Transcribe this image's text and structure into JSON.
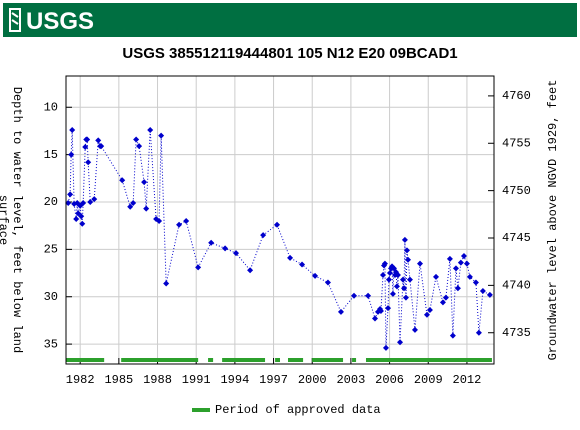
{
  "header": {
    "logo": "USGS"
  },
  "chart_data": {
    "type": "scatter",
    "title": "USGS 385512119444801 105  N12 E20 09BCAD1",
    "y_label": "Depth to water level, feet below land surface",
    "y2_label": "Groundwater level above NGVD 1929, feet",
    "xlim": [
      1980.9,
      2014.1
    ],
    "xticks": [
      1982,
      1985,
      1988,
      1991,
      1994,
      1997,
      2000,
      2003,
      2006,
      2009,
      2012
    ],
    "ylim": [
      6.7,
      37.1
    ],
    "y_inverted": true,
    "yticks": [
      10,
      15,
      20,
      25,
      30,
      35
    ],
    "y2lim": [
      4731.7,
      4762.1
    ],
    "y2ticks": [
      4735,
      4740,
      4745,
      4750,
      4755,
      4760
    ],
    "grid": true,
    "x": [
      1981.07,
      1981.22,
      1981.3,
      1981.38,
      1981.53,
      1981.69,
      1981.77,
      1981.84,
      1982.0,
      1982.08,
      1982.16,
      1982.23,
      1982.39,
      1982.47,
      1982.54,
      1982.62,
      1982.78,
      1983.09,
      1983.4,
      1983.55,
      1983.63,
      1985.26,
      1985.88,
      1986.11,
      1986.34,
      1986.57,
      1986.96,
      1987.12,
      1987.43,
      1987.89,
      1988.12,
      1988.28,
      1988.67,
      1989.67,
      1990.22,
      1991.15,
      1992.16,
      1993.24,
      1994.09,
      1995.18,
      1996.19,
      1997.27,
      1998.28,
      1999.21,
      2000.22,
      2001.22,
      2002.23,
      2003.24,
      2004.33,
      2004.87,
      2005.1,
      2005.26,
      2005.33,
      2005.49,
      2005.57,
      2005.64,
      2005.72,
      2005.88,
      2005.95,
      2006.03,
      2006.11,
      2006.19,
      2006.26,
      2006.34,
      2006.42,
      2006.5,
      2006.57,
      2006.65,
      2006.81,
      2007.04,
      2007.12,
      2007.19,
      2007.27,
      2007.35,
      2007.43,
      2007.58,
      2007.97,
      2008.36,
      2008.9,
      2009.13,
      2009.6,
      2010.14,
      2010.37,
      2010.68,
      2010.91,
      2011.15,
      2011.3,
      2011.53,
      2011.77,
      2012.0,
      2012.23,
      2012.7,
      2012.93,
      2013.24,
      2013.78
    ],
    "series": [
      {
        "color": "#0000cc",
        "values": [
          20.1,
          19.2,
          15.0,
          12.4,
          20.2,
          21.8,
          20.1,
          21.2,
          20.4,
          21.5,
          22.3,
          20.1,
          14.2,
          13.4,
          13.4,
          15.8,
          20.0,
          19.7,
          13.5,
          14.1,
          14.1,
          17.7,
          20.5,
          20.1,
          13.4,
          14.1,
          17.9,
          20.7,
          12.4,
          21.8,
          22.0,
          13.0,
          28.6,
          22.4,
          22.0,
          26.9,
          24.3,
          24.9,
          25.4,
          27.2,
          23.5,
          22.4,
          25.9,
          26.6,
          27.8,
          28.5,
          31.6,
          29.9,
          29.9,
          32.3,
          31.6,
          31.3,
          31.5,
          27.7,
          26.7,
          26.5,
          35.4,
          31.2,
          28.2,
          27.5,
          27.0,
          26.8,
          29.7,
          27.0,
          27.7,
          27.4,
          28.9,
          27.7,
          34.8,
          28.2,
          29.1,
          24.0,
          30.1,
          25.1,
          26.1,
          28.2,
          33.5,
          26.5,
          31.9,
          31.4,
          27.9,
          30.6,
          30.1,
          26.0,
          34.1,
          27.0,
          29.1,
          26.4,
          25.7,
          26.5,
          27.9,
          28.5,
          33.8,
          29.4,
          29.8
        ]
      }
    ],
    "approved_periods": [
      [
        1980.91,
        1983.86
      ],
      [
        1985.18,
        1991.15
      ],
      [
        1991.92,
        1992.31
      ],
      [
        1993.01,
        1996.34
      ],
      [
        1997.12,
        1997.5
      ],
      [
        1998.12,
        1999.29
      ],
      [
        1999.99,
        2002.39
      ],
      [
        2003.09,
        2003.4
      ],
      [
        2004.17,
        2013.94
      ]
    ],
    "approved_color": "#2ca02c",
    "legend_label": "Period of approved data"
  }
}
